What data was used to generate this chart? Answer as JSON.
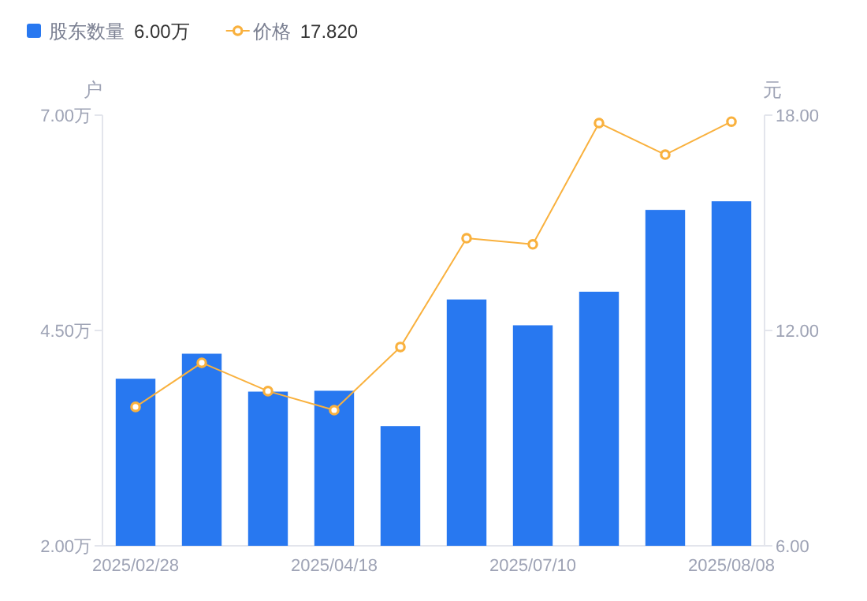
{
  "chart_data": {
    "type": "bar",
    "categories": [
      "2025/02/28",
      null,
      null,
      "2025/04/18",
      null,
      null,
      "2025/07/10",
      null,
      null,
      "2025/08/08"
    ],
    "ylabel": "户",
    "y2label": "元",
    "series": [
      {
        "name": "股东数量",
        "color": "#2878f0",
        "values": [
          3.94,
          4.23,
          3.79,
          3.8,
          3.39,
          4.86,
          4.56,
          4.95,
          5.9,
          6.0
        ]
      },
      {
        "name": "价格",
        "type": "line",
        "axis": "y2",
        "color": "#f9b13e",
        "marker": "circle",
        "values": [
          9.87,
          11.1,
          10.31,
          9.78,
          11.54,
          14.57,
          14.4,
          17.78,
          16.9,
          17.82
        ]
      }
    ],
    "annotations": [
      "6.00万",
      "17.820"
    ],
    "ylim": [
      2,
      7
    ],
    "yticks": [
      {
        "value": 2,
        "label": "2.00万"
      },
      {
        "value": 4.5,
        "label": "4.50万"
      },
      {
        "value": 7,
        "label": "7.00万"
      }
    ],
    "y2lim": [
      6,
      18
    ],
    "y2ticks": [
      {
        "value": 6,
        "label": "6.00"
      },
      {
        "value": 12,
        "label": "12.00"
      },
      {
        "value": 18,
        "label": "18.00"
      }
    ],
    "legend": "top left",
    "grid": false
  }
}
